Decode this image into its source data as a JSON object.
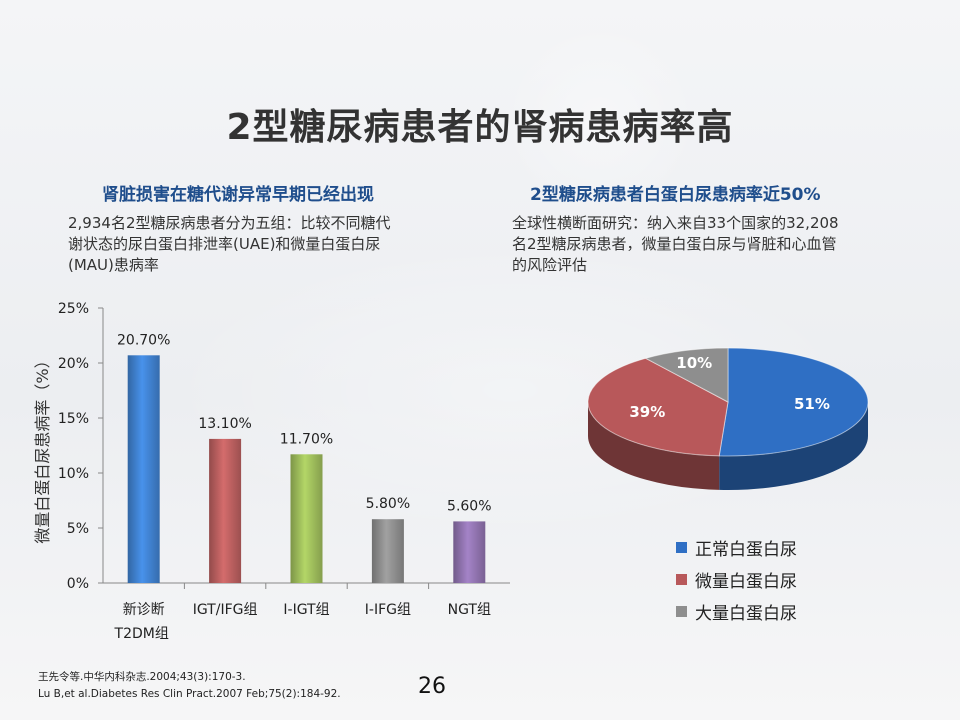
{
  "title": "2型糖尿病患者的肾病患病率高",
  "left": {
    "heading": "肾脏损害在糖代谢异常早期已经出现",
    "desc": [
      "2,934名2型糖尿病患者分为五组：比较不同糖代",
      "谢状态的尿白蛋白排泄率(UAE)和微量白蛋白尿",
      "(MAU)患病率"
    ]
  },
  "right": {
    "heading": "2型糖尿病患者白蛋白尿患病率近50%",
    "desc": [
      "全球性横断面研究：纳入来自33个国家的32,208",
      "名2型糖尿病患者，微量白蛋白尿与肾脏和心血管",
      "的风险评估"
    ]
  },
  "chart_data": [
    {
      "type": "bar",
      "categories": [
        [
          "新诊断",
          "T2DM组"
        ],
        [
          "IGT/IFG组"
        ],
        [
          "I-IGT组"
        ],
        [
          "I-IFG组"
        ],
        [
          "NGT组"
        ]
      ],
      "values": [
        20.7,
        13.1,
        11.7,
        5.8,
        5.6
      ],
      "value_labels": [
        "20.70%",
        "13.10%",
        "11.70%",
        "5.80%",
        "5.60%"
      ],
      "ylabel": "微量白蛋白尿患病率（%）",
      "yticks": [
        "0%",
        "5%",
        "10%",
        "15%",
        "20%",
        "25%"
      ],
      "ylim": [
        0,
        25
      ],
      "colors": [
        "#3f7fcc",
        "#b85e5e",
        "#9cba5a",
        "#8c8c8c",
        "#8f72ad"
      ]
    },
    {
      "type": "pie",
      "labels": [
        "正常白蛋白尿",
        "微量白蛋白尿",
        "大量白蛋白尿"
      ],
      "values": [
        51,
        39,
        10
      ],
      "value_labels": [
        "51%",
        "39%",
        "10%"
      ],
      "colors": [
        "#2f6fc4",
        "#b8585a",
        "#8e8e8e"
      ],
      "legend": "bottom"
    }
  ],
  "references": [
    "王先令等.中华内科杂志.2004;43(3):170-3.",
    "Lu B,et al.Diabetes Res Clin Pract.2007 Feb;75(2):184-92."
  ],
  "page_number": "26"
}
